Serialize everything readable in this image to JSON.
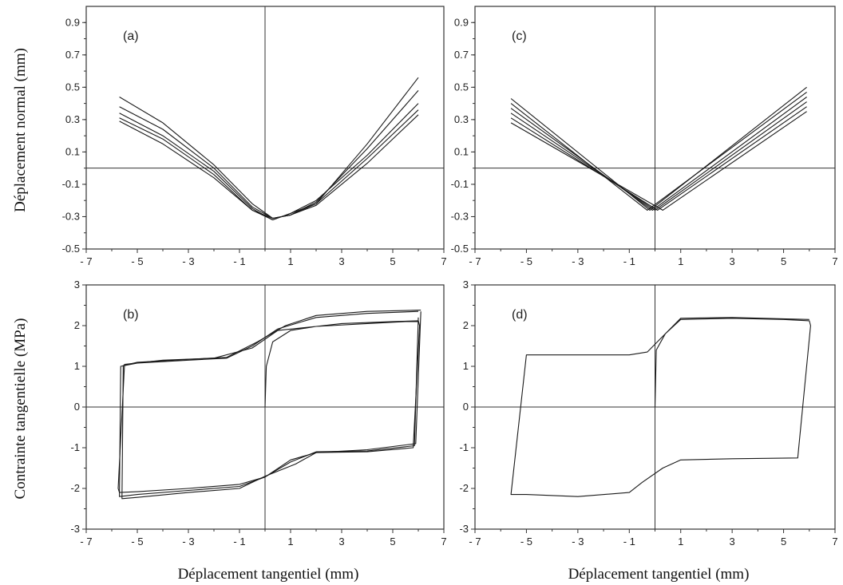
{
  "figure": {
    "ylabel_top": "Déplacement normal (mm)",
    "ylabel_bottom": "Contrainte tangentielle (MPa)",
    "xlabel_left": "Déplacement tangentiel (mm)",
    "xlabel_right": "Déplacement tangentiel (mm)"
  },
  "chart_data": [
    {
      "type": "line",
      "panel": "(a)",
      "xlim": [
        -7,
        7
      ],
      "ylim": [
        -0.5,
        1.0
      ],
      "xticks": [
        -7,
        -5,
        -3,
        -1,
        1,
        3,
        5,
        7
      ],
      "xtick_labels": [
        "- 7",
        "- 5",
        "- 3",
        "- 1",
        "1",
        "3",
        "5",
        "7"
      ],
      "yticks": [
        0.9,
        0.7,
        0.5,
        0.3,
        0.1,
        -0.1,
        -0.3,
        -0.5
      ],
      "ytick_labels": [
        "0.9",
        "0.7",
        "0.5",
        "0.3",
        "0.1",
        "-0.1",
        "-0.3",
        "-0.5"
      ],
      "grid": false,
      "series": [
        {
          "x": [
            -5.7,
            -4,
            -2,
            -0.5,
            0.3,
            1,
            2,
            4,
            6
          ],
          "y": [
            0.44,
            0.28,
            0.02,
            -0.22,
            -0.31,
            -0.29,
            -0.22,
            0.15,
            0.56
          ]
        },
        {
          "x": [
            -5.7,
            -4,
            -2,
            -0.5,
            0.3,
            1,
            2,
            4,
            6
          ],
          "y": [
            0.38,
            0.24,
            0.0,
            -0.24,
            -0.31,
            -0.29,
            -0.21,
            0.12,
            0.48
          ]
        },
        {
          "x": [
            -5.7,
            -4,
            -2,
            -0.5,
            0.3,
            1,
            2,
            4,
            6
          ],
          "y": [
            0.34,
            0.2,
            -0.02,
            -0.25,
            -0.32,
            -0.28,
            -0.2,
            0.08,
            0.4
          ]
        },
        {
          "x": [
            -5.7,
            -4,
            -2,
            -0.5,
            0.3,
            1,
            2,
            4,
            6
          ],
          "y": [
            0.31,
            0.18,
            -0.04,
            -0.26,
            -0.32,
            -0.28,
            -0.22,
            0.06,
            0.36
          ]
        },
        {
          "x": [
            -5.7,
            -4,
            -2,
            -0.5,
            0.3,
            1,
            2,
            4,
            6
          ],
          "y": [
            0.29,
            0.15,
            -0.06,
            -0.26,
            -0.31,
            -0.29,
            -0.23,
            0.03,
            0.33
          ]
        }
      ]
    },
    {
      "type": "line",
      "panel": "(b)",
      "xlim": [
        -7,
        7
      ],
      "ylim": [
        -3,
        3
      ],
      "xticks": [
        -7,
        -5,
        -3,
        -1,
        1,
        3,
        5,
        7
      ],
      "xtick_labels": [
        "- 7",
        "- 5",
        "- 3",
        "- 1",
        "1",
        "3",
        "5",
        "7"
      ],
      "yticks": [
        3,
        2,
        1,
        0,
        -1,
        -2,
        -3
      ],
      "ytick_labels": [
        "3",
        "2",
        "1",
        "0",
        "-1",
        "-2",
        "-3"
      ],
      "grid": false,
      "series": [
        {
          "x": [
            0,
            0.05,
            0.3,
            1,
            2,
            3,
            5,
            6,
            6.05,
            5.8,
            4,
            2,
            1,
            0,
            -1,
            -3,
            -5,
            -5.7,
            -5.75,
            -5.5,
            -4,
            -2,
            -0.5,
            0.5,
            2,
            4,
            5.5,
            6
          ],
          "y": [
            0,
            1.0,
            1.6,
            1.88,
            1.98,
            2.05,
            2.1,
            2.12,
            2.0,
            -1.0,
            -1.1,
            -1.12,
            -1.3,
            -1.72,
            -1.9,
            -2.0,
            -2.08,
            -2.1,
            -2.0,
            1.05,
            1.15,
            1.2,
            1.45,
            1.88,
            1.98,
            2.05,
            2.1,
            2.1
          ]
        },
        {
          "x": [
            6,
            5.85,
            4,
            2,
            1,
            0,
            -1,
            -3,
            -5,
            -5.7,
            -5.65,
            -5,
            -3,
            -1.5,
            -0.5,
            0.5,
            2,
            4,
            6
          ],
          "y": [
            2.2,
            -0.95,
            -1.08,
            -1.1,
            -1.35,
            -1.72,
            -1.95,
            -2.05,
            -2.15,
            -2.2,
            1.0,
            1.08,
            1.15,
            1.2,
            1.5,
            1.92,
            2.2,
            2.3,
            2.35
          ]
        },
        {
          "x": [
            6.1,
            5.9,
            4,
            2,
            1.2,
            0,
            -1,
            -3,
            -5,
            -5.6,
            -5.55,
            -5,
            -3,
            -1.5,
            -0.3,
            0.8,
            2,
            4,
            6.1
          ],
          "y": [
            2.35,
            -0.9,
            -1.05,
            -1.12,
            -1.4,
            -1.7,
            -2.0,
            -2.1,
            -2.22,
            -2.25,
            1.02,
            1.1,
            1.17,
            1.22,
            1.6,
            2.0,
            2.25,
            2.35,
            2.38
          ]
        }
      ]
    },
    {
      "type": "line",
      "panel": "(c)",
      "xlim": [
        -7,
        7
      ],
      "ylim": [
        -0.5,
        1.0
      ],
      "xticks": [
        -7,
        -5,
        -3,
        -1,
        1,
        3,
        5,
        7
      ],
      "xtick_labels": [
        "- 7",
        "- 5",
        "- 3",
        "- 1",
        "1",
        "3",
        "5",
        "7"
      ],
      "yticks": [
        0.9,
        0.7,
        0.5,
        0.3,
        0.1,
        -0.1,
        -0.3,
        -0.5
      ],
      "ytick_labels": [
        "0.9",
        "0.7",
        "0.5",
        "0.3",
        "0.1",
        "-0.1",
        "-0.3",
        "-0.5"
      ],
      "grid": false,
      "series": [
        {
          "x": [
            -5.6,
            -0.2,
            5.9
          ],
          "y": [
            0.43,
            -0.26,
            0.5
          ]
        },
        {
          "x": [
            -5.6,
            -0.3,
            5.9
          ],
          "y": [
            0.4,
            -0.26,
            0.47
          ]
        },
        {
          "x": [
            -5.6,
            -0.1,
            5.9
          ],
          "y": [
            0.37,
            -0.26,
            0.44
          ]
        },
        {
          "x": [
            -5.6,
            0.0,
            5.9
          ],
          "y": [
            0.34,
            -0.26,
            0.41
          ]
        },
        {
          "x": [
            -5.6,
            0.1,
            5.9
          ],
          "y": [
            0.31,
            -0.26,
            0.38
          ]
        },
        {
          "x": [
            -5.6,
            0.3,
            5.9
          ],
          "y": [
            0.28,
            -0.26,
            0.35
          ]
        }
      ]
    },
    {
      "type": "line",
      "panel": "(d)",
      "xlim": [
        -7,
        7
      ],
      "ylim": [
        -3,
        3
      ],
      "xticks": [
        -7,
        -5,
        -3,
        -1,
        1,
        3,
        5,
        7
      ],
      "xtick_labels": [
        "- 7",
        "- 5",
        "- 3",
        "- 1",
        "1",
        "3",
        "5",
        "7"
      ],
      "yticks": [
        3,
        2,
        1,
        0,
        -1,
        -2,
        -3
      ],
      "ytick_labels": [
        "3",
        "2",
        "1",
        "0",
        "-1",
        "-2",
        "-3"
      ],
      "grid": false,
      "series": [
        {
          "x": [
            0,
            0.05,
            0.4,
            1,
            3,
            5,
            6,
            6.05,
            5.55,
            3,
            1,
            0.3,
            -0.5,
            -1,
            -3,
            -5,
            -5.6,
            -5.0,
            -3,
            -1,
            -0.3,
            0.4,
            1,
            3,
            6
          ],
          "y": [
            0,
            1.4,
            1.8,
            2.15,
            2.18,
            2.15,
            2.12,
            2.0,
            -1.25,
            -1.27,
            -1.3,
            -1.5,
            -1.85,
            -2.1,
            -2.2,
            -2.15,
            -2.15,
            1.28,
            1.28,
            1.28,
            1.35,
            1.8,
            2.18,
            2.2,
            2.15
          ]
        }
      ]
    }
  ]
}
